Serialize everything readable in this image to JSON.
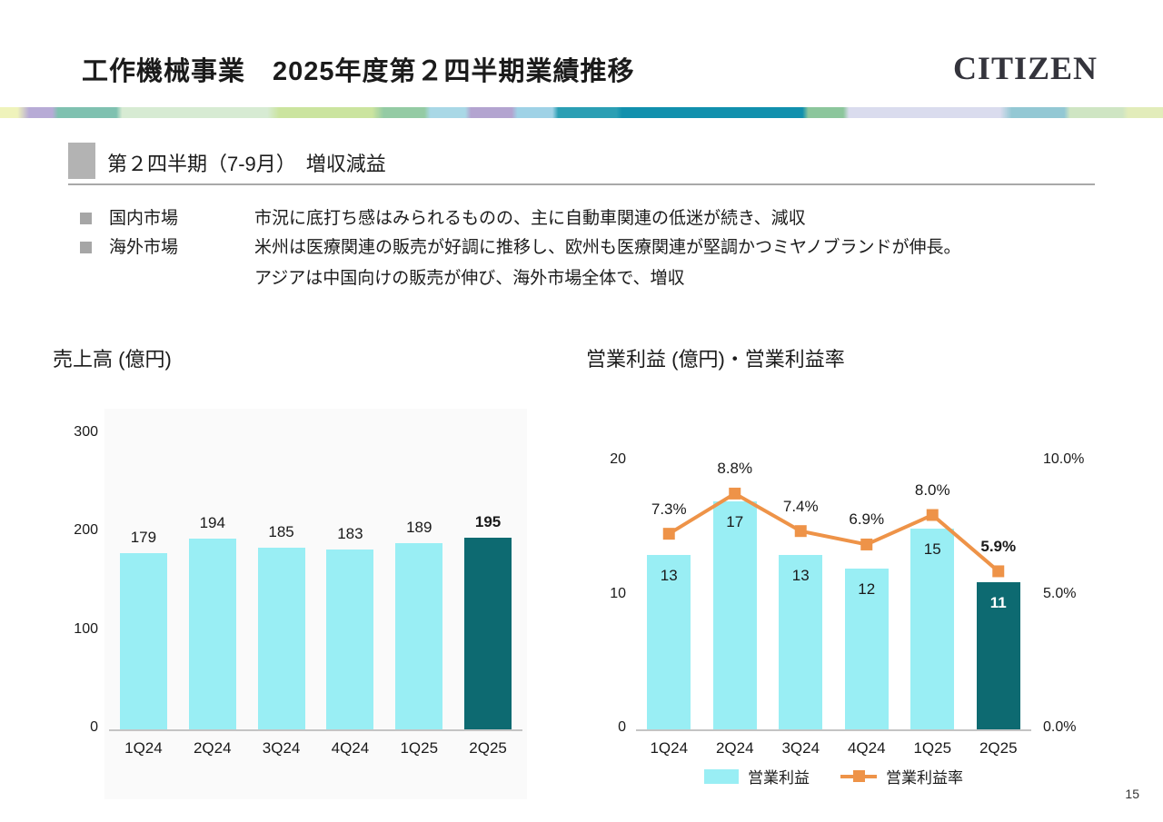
{
  "slide": {
    "title": "工作機械事業　2025年度第２四半期業績推移",
    "logo": "CITIZEN",
    "page_number": "15"
  },
  "section": {
    "heading": "第２四半期（7-9月）　増収減益"
  },
  "bullets": [
    {
      "label": "国内市場",
      "lines": [
        "市況に底打ち感はみられるものの、主に自動車関連の低迷が続き、減収"
      ]
    },
    {
      "label": "海外市場",
      "lines": [
        "米州は医療関連の販売が好調に推移し、欧州も医療関連が堅調かつミヤノブランドが伸長。",
        "アジアは中国向けの販売が伸び、海外市場全体で、増収"
      ]
    }
  ],
  "colors": {
    "bar_cyan": "#99EEF4",
    "bar_teal_dark": "#0D6A71",
    "line_orange": "#EE9348",
    "header_gray": "#b3b3b3"
  },
  "chart_data": [
    {
      "type": "bar",
      "title": "売上高 (億円)",
      "categories": [
        "1Q24",
        "2Q24",
        "3Q24",
        "4Q24",
        "1Q25",
        "2Q25"
      ],
      "values": [
        179,
        194,
        185,
        183,
        189,
        195
      ],
      "highlight_index": 5,
      "ylim": [
        0,
        300
      ],
      "yticks": [
        0,
        100,
        200,
        300
      ],
      "grid": false,
      "bar_color": "#99EEF4",
      "highlight_color": "#0D6A71"
    },
    {
      "type": "bar+line",
      "title": "営業利益 (億円)・営業利益率",
      "categories": [
        "1Q24",
        "2Q24",
        "3Q24",
        "4Q24",
        "1Q25",
        "2Q25"
      ],
      "series": [
        {
          "name": "営業利益",
          "type": "bar",
          "axis": "left",
          "values": [
            13,
            17,
            13,
            12,
            15,
            11
          ],
          "color": "#99EEF4",
          "highlight_color": "#0D6A71"
        },
        {
          "name": "営業利益率",
          "type": "line",
          "axis": "right",
          "values": [
            7.3,
            8.8,
            7.4,
            6.9,
            8.0,
            5.9
          ],
          "labels": [
            "7.3%",
            "8.8%",
            "7.4%",
            "6.9%",
            "8.0%",
            "5.9%"
          ],
          "color": "#EE9348"
        }
      ],
      "highlight_index": 5,
      "left_axis": {
        "ticks": [
          0,
          10,
          20
        ],
        "max": 20
      },
      "right_axis": {
        "tick_labels": [
          "0.0%",
          "5.0%",
          "10.0%"
        ],
        "tick_values": [
          0,
          5,
          10
        ],
        "max": 10
      },
      "legend_position": "bottom",
      "grid": false
    }
  ]
}
